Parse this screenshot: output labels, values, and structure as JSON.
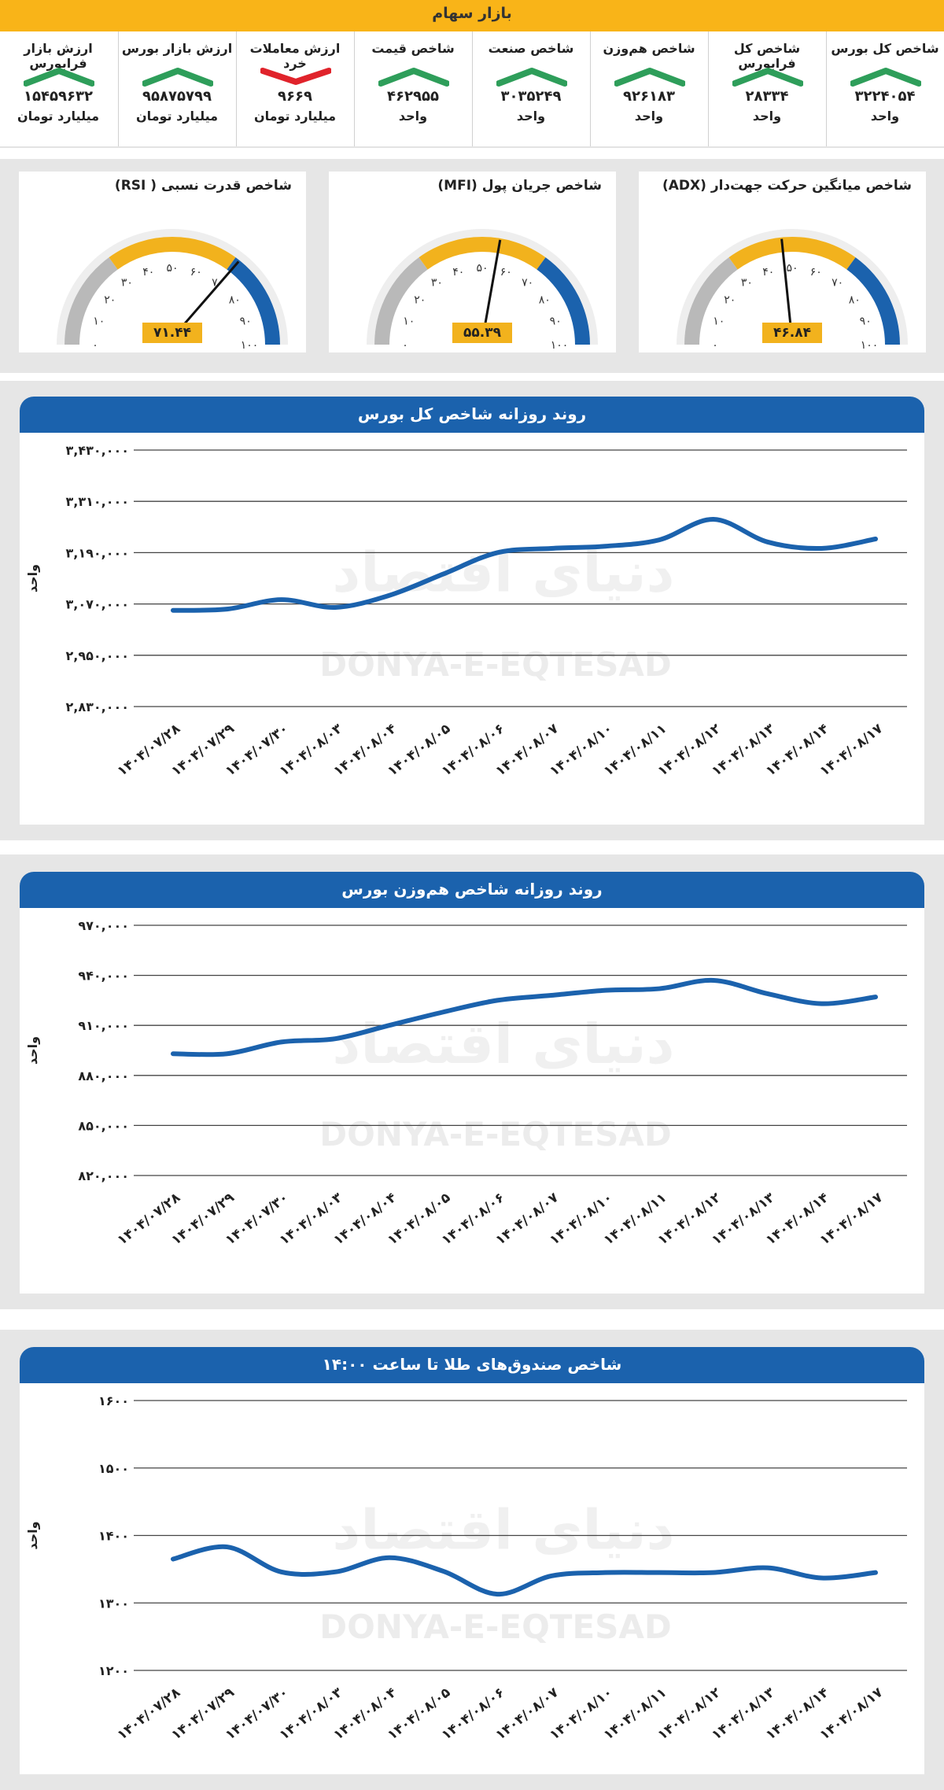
{
  "header": {
    "title": "بازار سهام"
  },
  "stats": [
    {
      "label": "شاخص کل بورس",
      "value": "۳۲۲۴۰۵۴",
      "unit": "واحد",
      "trend": "up"
    },
    {
      "label": "شاخص کل فرابورس",
      "value": "۲۸۳۳۴",
      "unit": "واحد",
      "trend": "up"
    },
    {
      "label": "شاخص هم‌وزن",
      "value": "۹۲۶۱۸۳",
      "unit": "واحد",
      "trend": "up"
    },
    {
      "label": "شاخص صنعت",
      "value": "۳۰۳۵۲۴۹",
      "unit": "واحد",
      "trend": "up"
    },
    {
      "label": "شاخص قیمت",
      "value": "۴۶۲۹۵۵",
      "unit": "واحد",
      "trend": "up"
    },
    {
      "label": "ارزش معاملات خرد",
      "value": "۹۶۶۹",
      "unit": "میلیارد تومان",
      "trend": "down"
    },
    {
      "label": "ارزش بازار بورس",
      "value": "۹۵۸۷۵۷۹۹",
      "unit": "میلیارد تومان",
      "trend": "up"
    },
    {
      "label": "ارزش بازار فرابورس",
      "value": "۱۵۴۵۹۶۳۲",
      "unit": "میلیارد تومان",
      "trend": "up"
    }
  ],
  "colors": {
    "banner": "#f9b418",
    "up": "#2e9e5a",
    "down": "#e0232b",
    "blue": "#1b62ad",
    "gold": "#f2b21d",
    "gray": "#b9b9b9"
  },
  "gauges": [
    {
      "title": "شاخص میانگین حرکت جهت‌دار (ADX)",
      "value": 46.84,
      "value_label": "۴۶.۸۴"
    },
    {
      "title": "شاخص جریان پول (MFI)",
      "value": 55.39,
      "value_label": "۵۵.۳۹"
    },
    {
      "title": "شاخص قدرت نسبی ( RSI)",
      "value": 71.44,
      "value_label": "۷۱.۴۴"
    }
  ],
  "gauge_ticks": [
    "۰",
    "۱۰",
    "۲۰",
    "۳۰",
    "۴۰",
    "۵۰",
    "۶۰",
    "۷۰",
    "۸۰",
    "۹۰",
    "۱۰۰"
  ],
  "watermark": {
    "latin": "DONYA-E-EQTESAD",
    "persian": "دنیای اقتصاد"
  },
  "chart_data": [
    {
      "type": "line",
      "title": "روند روزانه شاخص کل بورس",
      "ylabel": "واحد",
      "categories": [
        "۱۴۰۴/۰۷/۲۸",
        "۱۴۰۴/۰۷/۲۹",
        "۱۴۰۴/۰۷/۳۰",
        "۱۴۰۴/۰۸/۰۳",
        "۱۴۰۴/۰۸/۰۴",
        "۱۴۰۴/۰۸/۰۵",
        "۱۴۰۴/۰۸/۰۶",
        "۱۴۰۴/۰۸/۰۷",
        "۱۴۰۴/۰۸/۱۰",
        "۱۴۰۴/۰۸/۱۱",
        "۱۴۰۴/۰۸/۱۲",
        "۱۴۰۴/۰۸/۱۳",
        "۱۴۰۴/۰۸/۱۴",
        "۱۴۰۴/۰۸/۱۷"
      ],
      "values": [
        3055000,
        3058000,
        3080000,
        3062000,
        3090000,
        3140000,
        3190000,
        3200000,
        3205000,
        3220000,
        3268000,
        3215000,
        3200000,
        3222000
      ],
      "ylim": [
        2830000,
        3430000
      ],
      "yticks": [
        2830000,
        2950000,
        3070000,
        3190000,
        3310000,
        3430000
      ],
      "ytick_labels": [
        "۲,۸۳۰,۰۰۰",
        "۲,۹۵۰,۰۰۰",
        "۳,۰۷۰,۰۰۰",
        "۳,۱۹۰,۰۰۰",
        "۳,۳۱۰,۰۰۰",
        "۳,۴۳۰,۰۰۰"
      ]
    },
    {
      "type": "line",
      "title": "روند روزانه شاخص هم‌وزن بورس",
      "ylabel": "واحد",
      "categories": [
        "۱۴۰۴/۰۷/۲۸",
        "۱۴۰۴/۰۷/۲۹",
        "۱۴۰۴/۰۷/۳۰",
        "۱۴۰۴/۰۸/۰۳",
        "۱۴۰۴/۰۸/۰۴",
        "۱۴۰۴/۰۸/۰۵",
        "۱۴۰۴/۰۸/۰۶",
        "۱۴۰۴/۰۸/۰۷",
        "۱۴۰۴/۰۸/۱۰",
        "۱۴۰۴/۰۸/۱۱",
        "۱۴۰۴/۰۸/۱۲",
        "۱۴۰۴/۰۸/۱۳",
        "۱۴۰۴/۰۸/۱۴",
        "۱۴۰۴/۰۸/۱۷"
      ],
      "values": [
        893000,
        893000,
        900000,
        902000,
        910000,
        918000,
        925000,
        928000,
        931000,
        932000,
        937000,
        929000,
        923000,
        927000
      ],
      "ylim": [
        820000,
        970000
      ],
      "yticks": [
        820000,
        850000,
        880000,
        910000,
        940000,
        970000
      ],
      "ytick_labels": [
        "۸۲۰,۰۰۰",
        "۸۵۰,۰۰۰",
        "۸۸۰,۰۰۰",
        "۹۱۰,۰۰۰",
        "۹۴۰,۰۰۰",
        "۹۷۰,۰۰۰"
      ]
    },
    {
      "type": "line",
      "title": "شاخص صندوق‌های طلا تا ساعت ۱۴:۰۰",
      "ylabel": "واحد",
      "categories": [
        "۱۴۰۴/۰۷/۲۸",
        "۱۴۰۴/۰۷/۲۹",
        "۱۴۰۴/۰۷/۳۰",
        "۱۴۰۴/۰۸/۰۳",
        "۱۴۰۴/۰۸/۰۴",
        "۱۴۰۴/۰۸/۰۵",
        "۱۴۰۴/۰۸/۰۶",
        "۱۴۰۴/۰۸/۰۷",
        "۱۴۰۴/۰۸/۱۰",
        "۱۴۰۴/۰۸/۱۱",
        "۱۴۰۴/۰۸/۱۲",
        "۱۴۰۴/۰۸/۱۳",
        "۱۴۰۴/۰۸/۱۴",
        "۱۴۰۴/۰۸/۱۷"
      ],
      "values": [
        1365,
        1383,
        1346,
        1346,
        1367,
        1347,
        1313,
        1340,
        1345,
        1345,
        1345,
        1352,
        1337,
        1345
      ],
      "ylim": [
        1200,
        1600
      ],
      "yticks": [
        1200,
        1300,
        1400,
        1500,
        1600
      ],
      "ytick_labels": [
        "۱۲۰۰",
        "۱۳۰۰",
        "۱۴۰۰",
        "۱۵۰۰",
        "۱۶۰۰"
      ]
    }
  ]
}
